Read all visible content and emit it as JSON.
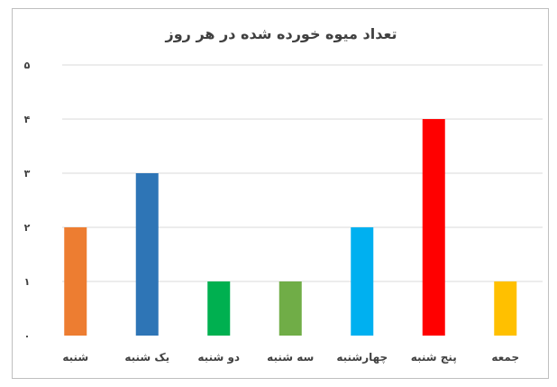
{
  "chart_data": {
    "type": "bar",
    "title": "تعداد میوه خورده شده در هر روز",
    "categories": [
      "شنبه",
      "یک شنبه",
      "دو شنبه",
      "سه شنبه",
      "چهارشنبه",
      "پنج شنبه",
      "جمعه"
    ],
    "values": [
      2,
      3,
      1,
      1,
      2,
      4,
      1
    ],
    "colors": [
      "#ed7d31",
      "#2e75b6",
      "#00b050",
      "#70ad47",
      "#00b0f0",
      "#ff0000",
      "#ffc000"
    ],
    "ylim": [
      0,
      5
    ],
    "yticks": [
      0,
      1,
      2,
      3,
      4,
      5
    ],
    "ytick_labels": [
      "۰",
      "۱",
      "۲",
      "۳",
      "۴",
      "۵"
    ],
    "grid": true,
    "legend": "none"
  }
}
